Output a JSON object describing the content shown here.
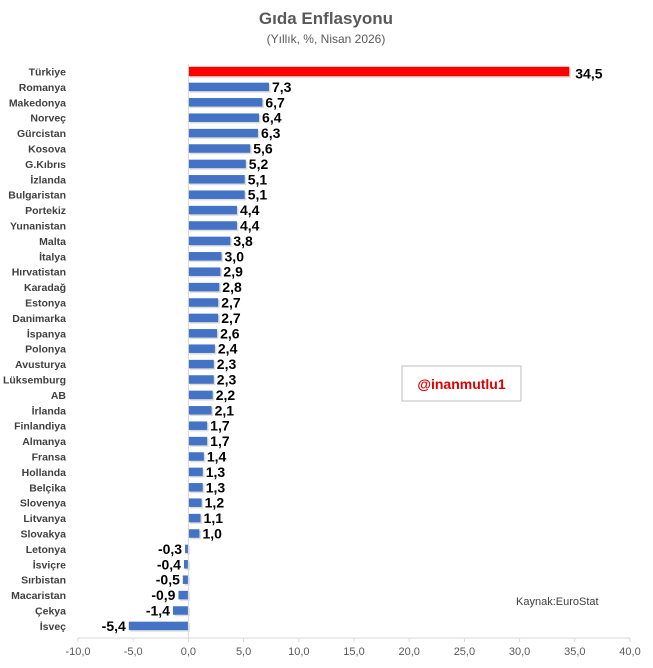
{
  "chart_data": {
    "type": "bar",
    "orientation": "horizontal",
    "title": "Gıda Enflasyonu",
    "subtitle": "(Yıllık, %, Nisan 2026)",
    "categories": [
      "Türkiye",
      "Romanya",
      "Makedonya",
      "Norveç",
      "Gürcistan",
      "Kosova",
      "G.Kıbrıs",
      "İzlanda",
      "Bulgaristan",
      "Portekiz",
      "Yunanistan",
      "Malta",
      "İtalya",
      "Hırvatistan",
      "Karadağ",
      "Estonya",
      "Danimarka",
      "İspanya",
      "Polonya",
      "Avusturya",
      "Lüksemburg",
      "AB",
      "İrlanda",
      "Finlandiya",
      "Almanya",
      "Fransa",
      "Hollanda",
      "Belçika",
      "Slovenya",
      "Litvanya",
      "Slovakya",
      "Letonya",
      "İsviçre",
      "Sırbistan",
      "Macaristan",
      "Çekya",
      "İsveç"
    ],
    "values": [
      34.5,
      7.3,
      6.7,
      6.4,
      6.3,
      5.6,
      5.2,
      5.1,
      5.1,
      4.4,
      4.4,
      3.8,
      3.0,
      2.9,
      2.8,
      2.7,
      2.7,
      2.6,
      2.4,
      2.3,
      2.3,
      2.2,
      2.1,
      1.7,
      1.7,
      1.4,
      1.3,
      1.3,
      1.2,
      1.1,
      1.0,
      -0.3,
      -0.4,
      -0.5,
      -0.9,
      -1.4,
      -5.4
    ],
    "value_labels": [
      "34,5",
      "7,3",
      "6,7",
      "6,4",
      "6,3",
      "5,6",
      "5,2",
      "5,1",
      "5,1",
      "4,4",
      "4,4",
      "3,8",
      "3,0",
      "2,9",
      "2,8",
      "2,7",
      "2,7",
      "2,6",
      "2,4",
      "2,3",
      "2,3",
      "2,2",
      "2,1",
      "1,7",
      "1,7",
      "1,4",
      "1,3",
      "1,3",
      "1,2",
      "1,1",
      "1,0",
      "-0,3",
      "-0,4",
      "-0,5",
      "-0,9",
      "-1,4",
      "-5,4"
    ],
    "xlim": [
      -10,
      40
    ],
    "ticks": [
      -10,
      -5,
      0,
      5,
      10,
      15,
      20,
      25,
      30,
      35,
      40
    ],
    "tick_labels": [
      "-10,0",
      "-5,0",
      "0,0",
      "5,0",
      "10,0",
      "15,0",
      "20,0",
      "25,0",
      "30,0",
      "35,0",
      "40,0"
    ],
    "highlight": {
      "Türkiye": "#ff0000",
      "AB": "#4472c4"
    },
    "bar_color": "#4472c4",
    "highlight_bar_color": "#ff0000",
    "grid": false,
    "xlabel": "",
    "ylabel": ""
  },
  "annotations": {
    "handle": "@inanmutlu1",
    "source": "Kaynak:EuroStat"
  },
  "colors": {
    "bar": "#4472c4",
    "highlight": "#ff0000",
    "eu_label": "#4472c4",
    "handle": "#e00000"
  }
}
